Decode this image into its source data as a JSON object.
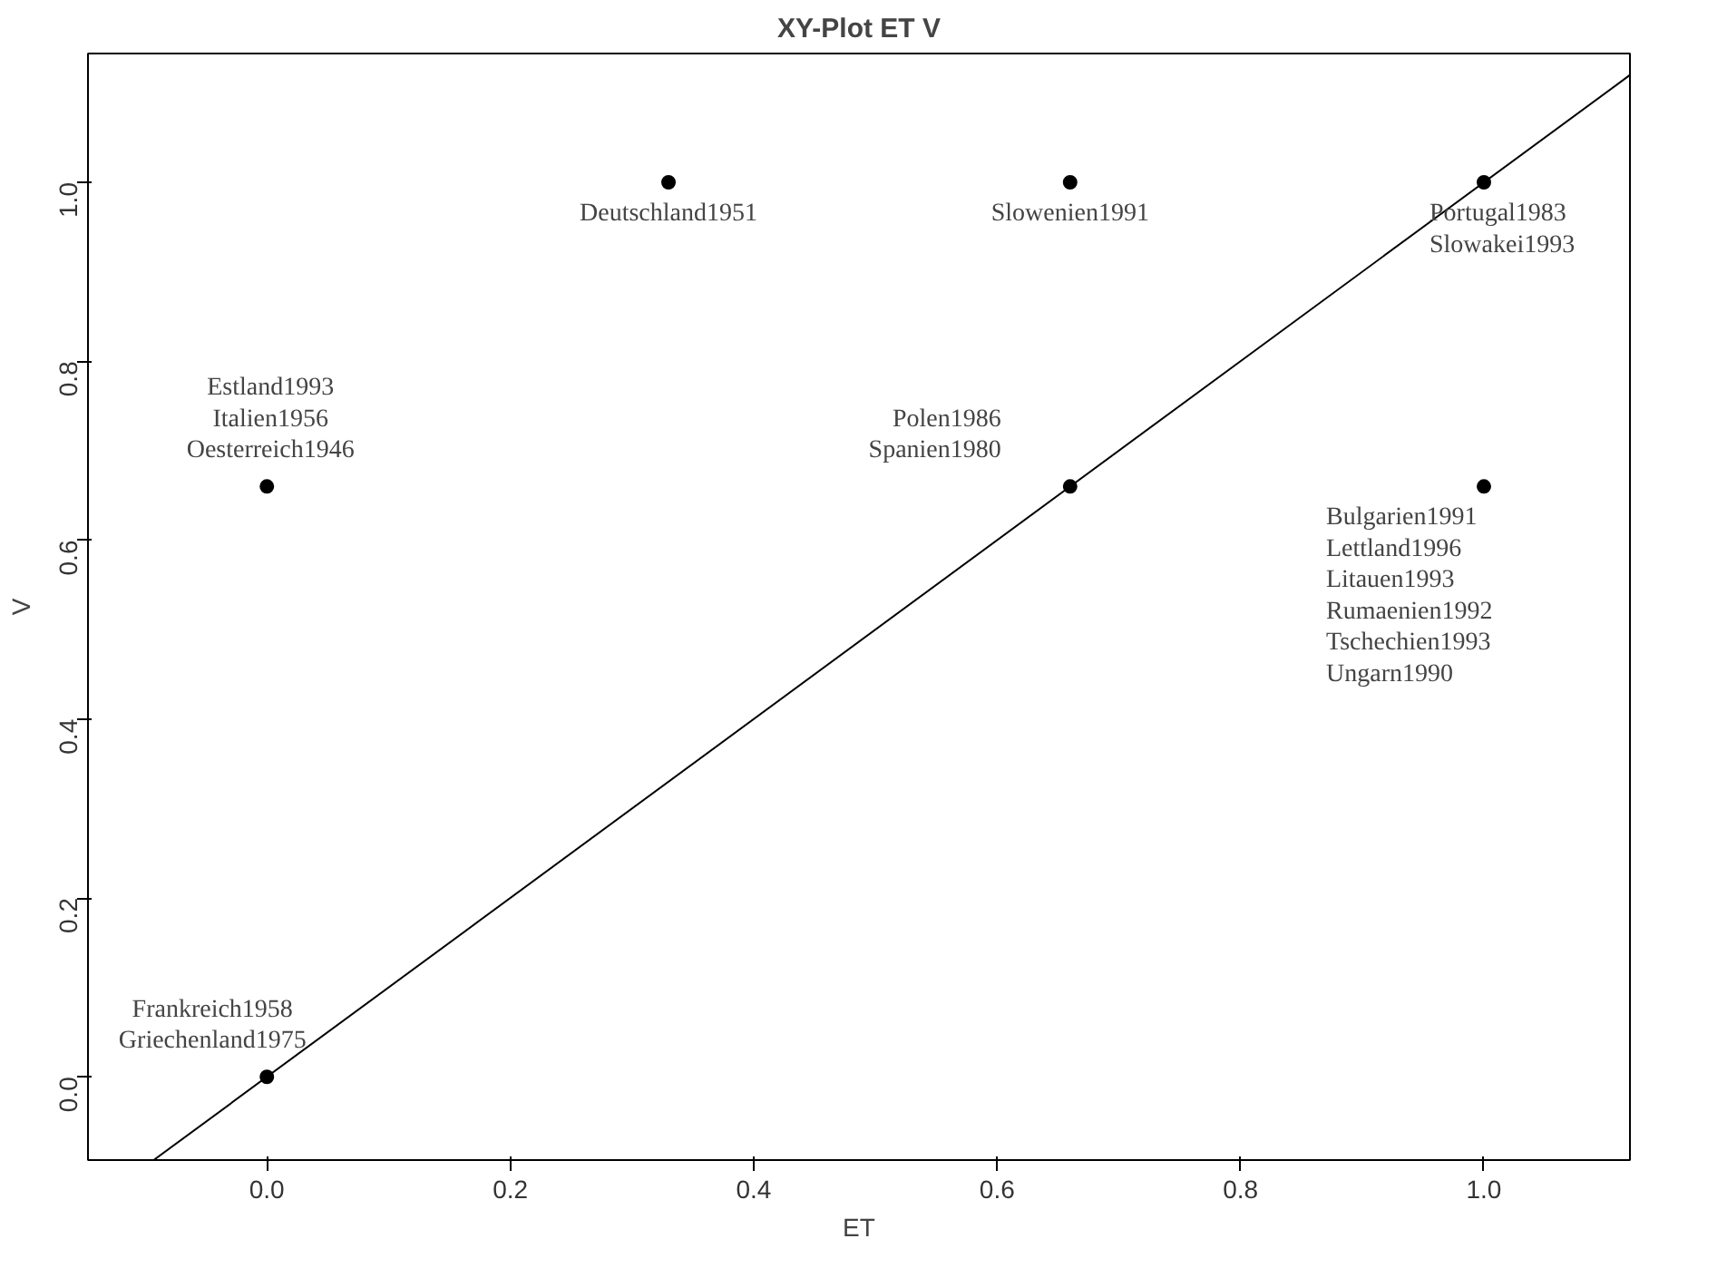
{
  "chart_data": {
    "type": "scatter",
    "title": "XY-Plot ET V",
    "xlabel": "ET",
    "ylabel": "V",
    "xlim": [
      -0.147,
      1.12
    ],
    "ylim": [
      -0.093,
      1.144
    ],
    "xticks": [
      {
        "value": 0,
        "label": "0.0"
      },
      {
        "value": 0.2,
        "label": "0.2"
      },
      {
        "value": 0.4,
        "label": "0.4"
      },
      {
        "value": 0.6,
        "label": "0.6"
      },
      {
        "value": 0.8,
        "label": "0.8"
      },
      {
        "value": 1,
        "label": "1.0"
      }
    ],
    "yticks": [
      {
        "value": 0,
        "label": "0.0"
      },
      {
        "value": 0.2,
        "label": "0.2"
      },
      {
        "value": 0.4,
        "label": "0.4"
      },
      {
        "value": 0.6,
        "label": "0.6"
      },
      {
        "value": 0.8,
        "label": "0.8"
      },
      {
        "value": 1,
        "label": "1.0"
      }
    ],
    "grid": false,
    "marker": "circle",
    "series": [
      {
        "type": "line",
        "color": "#000000",
        "line_style": "solid",
        "marker": "none",
        "x": [
          -0.093,
          1.12
        ],
        "values": [
          -0.093,
          1.12
        ]
      },
      {
        "color": "#000000",
        "x": [
          0,
          0,
          0.33,
          0.66,
          1,
          0.66,
          1
        ],
        "values": [
          0,
          0.66,
          1,
          1,
          1,
          0.66,
          0.66
        ]
      }
    ],
    "annotations": [
      {
        "text": "Frankreich1958\nGriechenland1975",
        "x": 0,
        "y": 0
      },
      {
        "text": "Estland1993\nItalien1956\nOesterreich1946",
        "x": 0,
        "y": 0.66
      },
      {
        "text": "Deutschland1951",
        "x": 0.33,
        "y": 1
      },
      {
        "text": "Slowenien1991",
        "x": 0.66,
        "y": 1
      },
      {
        "text": "Portugal1983\nSlowakei1993",
        "x": 1,
        "y": 1
      },
      {
        "text": "Polen1986\nSpanien1980",
        "x": 0.66,
        "y": 0.66
      },
      {
        "text": "Bulgarien1991\nLettland1996\nLitauen1993\nRumaenien1992\nTschechien1993\nUngarn1990",
        "x": 1,
        "y": 0.66
      }
    ]
  }
}
